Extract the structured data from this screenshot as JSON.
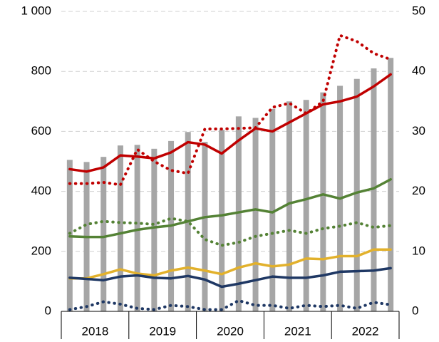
{
  "chart_data": {
    "type": "bar_line",
    "categories": [
      null,
      null,
      null,
      null,
      null,
      null,
      null,
      null,
      null,
      null,
      null,
      null,
      null,
      null,
      null,
      null,
      null,
      null,
      null,
      null
    ],
    "groups": [
      "2018",
      "2019",
      "2020",
      "2021",
      "2022"
    ],
    "group_size": 4,
    "bar": {
      "color": "#a6a6a6",
      "values": [
        505,
        498,
        515,
        553,
        555,
        542,
        568,
        598,
        565,
        605,
        650,
        645,
        675,
        700,
        705,
        730,
        752,
        775,
        810,
        845
      ]
    },
    "series": [
      {
        "color": "#c00000",
        "style": "solid",
        "axis": "y2",
        "values": [
          23.7,
          23.3,
          24,
          26,
          25.8,
          25.5,
          26.5,
          28.2,
          27.8,
          26.3,
          28.5,
          30.5,
          30,
          31.5,
          33,
          34.5,
          35,
          35.8,
          37.5,
          39.5
        ]
      },
      {
        "color": "#c00000",
        "style": "dotted",
        "axis": "y2",
        "values": [
          21.3,
          21.3,
          21.5,
          21.1,
          27,
          25,
          23.5,
          23,
          30.4,
          30.4,
          30.5,
          30.6,
          34,
          34.7,
          33,
          35,
          46,
          45,
          43,
          42
        ]
      },
      {
        "color": "#548235",
        "style": "solid",
        "axis": "y2",
        "values": [
          12.5,
          12.4,
          12.4,
          13,
          13.6,
          14,
          14.3,
          15,
          15.7,
          16,
          16.5,
          17,
          16.5,
          18,
          18.7,
          19.5,
          18.8,
          19.8,
          20.5,
          22
        ]
      },
      {
        "color": "#548235",
        "style": "dotted",
        "axis": "y2",
        "values": [
          13,
          14.5,
          15,
          14.8,
          14.7,
          14.5,
          15.5,
          15,
          12,
          11,
          11.5,
          12.5,
          13,
          13.5,
          13,
          13.8,
          14.2,
          14.8,
          14,
          14.3
        ]
      },
      {
        "color": "#e2b12c",
        "style": "solid",
        "axis": "y2",
        "values": [
          5.5,
          5.5,
          6.2,
          7,
          6.3,
          6,
          6.8,
          7.3,
          6.8,
          6.2,
          7.3,
          8,
          7.5,
          7.8,
          8.8,
          8.7,
          9.2,
          9.2,
          10.3,
          10.3
        ]
      },
      {
        "color": "#1f3864",
        "style": "solid",
        "axis": "y2",
        "values": [
          5.6,
          5.4,
          5.2,
          5.8,
          6,
          5.6,
          5.5,
          5.9,
          5.3,
          4.1,
          4.6,
          5.2,
          5.8,
          5.6,
          5.6,
          6,
          6.6,
          6.7,
          6.8,
          7.2
        ]
      },
      {
        "color": "#1f3864",
        "style": "dotted",
        "axis": "y2",
        "values": [
          0.3,
          0.8,
          1.6,
          1.2,
          0.5,
          0.3,
          1,
          0.8,
          0.3,
          0.3,
          1.8,
          1,
          1,
          0.5,
          1,
          0.8,
          1,
          0.5,
          1.5,
          1.1
        ]
      }
    ],
    "ylim": [
      0,
      1000
    ],
    "yticks": [
      0,
      200,
      400,
      600,
      800,
      {
        "value": 1000,
        "label": "1 000"
      }
    ],
    "y2lim": [
      0,
      50
    ],
    "y2ticks": [
      0,
      10,
      20,
      30,
      40,
      50
    ],
    "grid": true
  }
}
